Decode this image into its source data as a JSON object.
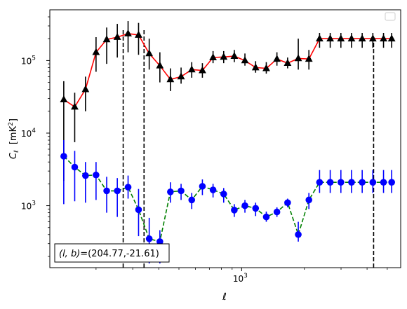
{
  "chart_data": {
    "type": "scatter",
    "xlabel": "ℓ",
    "ylabel_parts": {
      "c": "C",
      "sub": "ℓ",
      "unit_pre": "[mK",
      "unit_sup": "2",
      "unit_post": "]"
    },
    "xscale": "log",
    "yscale": "log",
    "xlim": [
      120,
      5800
    ],
    "ylim": [
      140,
      500000
    ],
    "x_major_ticks": [
      {
        "value": 1000,
        "base": "10",
        "exp": "3"
      }
    ],
    "y_major_ticks": [
      {
        "value": 1000,
        "base": "10",
        "exp": "3"
      },
      {
        "value": 10000,
        "base": "10",
        "exp": "4"
      },
      {
        "value": 100000,
        "base": "10",
        "exp": "5"
      }
    ],
    "legend": {
      "placement": "upper-right",
      "entries": []
    },
    "annotation": {
      "text": "(l, b)=(204.77,-21.61)",
      "lb": "(l, b)",
      "coords": "=(204.77,-21.61)",
      "placement": "lower-left"
    },
    "vlines": [
      {
        "x": 270,
        "color": "#000000"
      },
      {
        "x": 340,
        "color": "#000000"
      },
      {
        "x": 4300,
        "color": "#000000"
      }
    ],
    "vline_ylims": [
      [
        140,
        280000
      ],
      [
        140,
        280000
      ],
      [
        140,
        210000
      ]
    ],
    "series": [
      {
        "color": "#000000",
        "line_color": "#ff0000",
        "line_style": "solid",
        "marker": "triangle",
        "x": [
          140,
          158,
          178,
          200,
          225,
          253,
          285,
          320,
          360,
          405,
          455,
          512,
          576,
          648,
          729,
          820,
          922,
          1037,
          1167,
          1313,
          1477,
          1662,
          1870,
          2103,
          2366,
          2662,
          2995,
          3369,
          3790,
          4264,
          4798,
          5250
        ],
        "y": [
          29000,
          23000,
          40000,
          130000,
          195000,
          210000,
          235000,
          225000,
          125000,
          85000,
          55000,
          60000,
          75000,
          73000,
          110000,
          112000,
          115000,
          100000,
          80000,
          78000,
          105000,
          92000,
          107000,
          105000,
          200000,
          200000,
          200000,
          200000,
          200000,
          200000,
          200000,
          200000
        ],
        "y_low": [
          2200,
          7500,
          20000,
          70000,
          90000,
          110000,
          130000,
          120000,
          75000,
          50000,
          38000,
          48000,
          58000,
          58000,
          92000,
          92000,
          95000,
          85000,
          68000,
          66000,
          85000,
          78000,
          75000,
          75000,
          150000,
          150000,
          150000,
          150000,
          150000,
          150000,
          150000,
          150000
        ],
        "y_high": [
          52000,
          36000,
          60000,
          210000,
          285000,
          320000,
          350000,
          330000,
          200000,
          130000,
          78000,
          80000,
          95000,
          92000,
          135000,
          135000,
          140000,
          125000,
          98000,
          95000,
          130000,
          110000,
          200000,
          140000,
          240000,
          240000,
          240000,
          240000,
          240000,
          240000,
          240000,
          240000
        ]
      },
      {
        "color": "#0000ff",
        "line_color": "#008000",
        "line_style": "dashed",
        "marker": "circle",
        "x": [
          140,
          158,
          178,
          200,
          225,
          253,
          285,
          320,
          360,
          405,
          455,
          512,
          576,
          648,
          729,
          820,
          922,
          1037,
          1167,
          1313,
          1477,
          1662,
          1870,
          2103,
          2366,
          2662,
          2995,
          3369,
          3790,
          4264,
          4798,
          5250
        ],
        "y": [
          4800,
          3400,
          2600,
          2650,
          1600,
          1600,
          1800,
          880,
          350,
          320,
          1550,
          1600,
          1200,
          1850,
          1650,
          1450,
          870,
          1000,
          920,
          700,
          820,
          1100,
          400,
          1200,
          2100,
          2100,
          2100,
          2100,
          2100,
          2100,
          2100,
          2100
        ],
        "y_low": [
          1050,
          1150,
          1100,
          1200,
          800,
          700,
          1250,
          380,
          160,
          160,
          1100,
          1200,
          900,
          1400,
          1300,
          1100,
          700,
          800,
          720,
          600,
          700,
          950,
          320,
          900,
          1500,
          1500,
          1500,
          1500,
          1500,
          1500,
          1500,
          1500
        ],
        "y_high": [
          8000,
          5700,
          4000,
          4000,
          2500,
          2400,
          2600,
          1700,
          680,
          460,
          2100,
          2000,
          1500,
          2300,
          2000,
          1750,
          1050,
          1200,
          1100,
          830,
          950,
          1250,
          600,
          1500,
          3100,
          3100,
          3100,
          3100,
          3100,
          3100,
          3100,
          3100
        ]
      }
    ]
  }
}
